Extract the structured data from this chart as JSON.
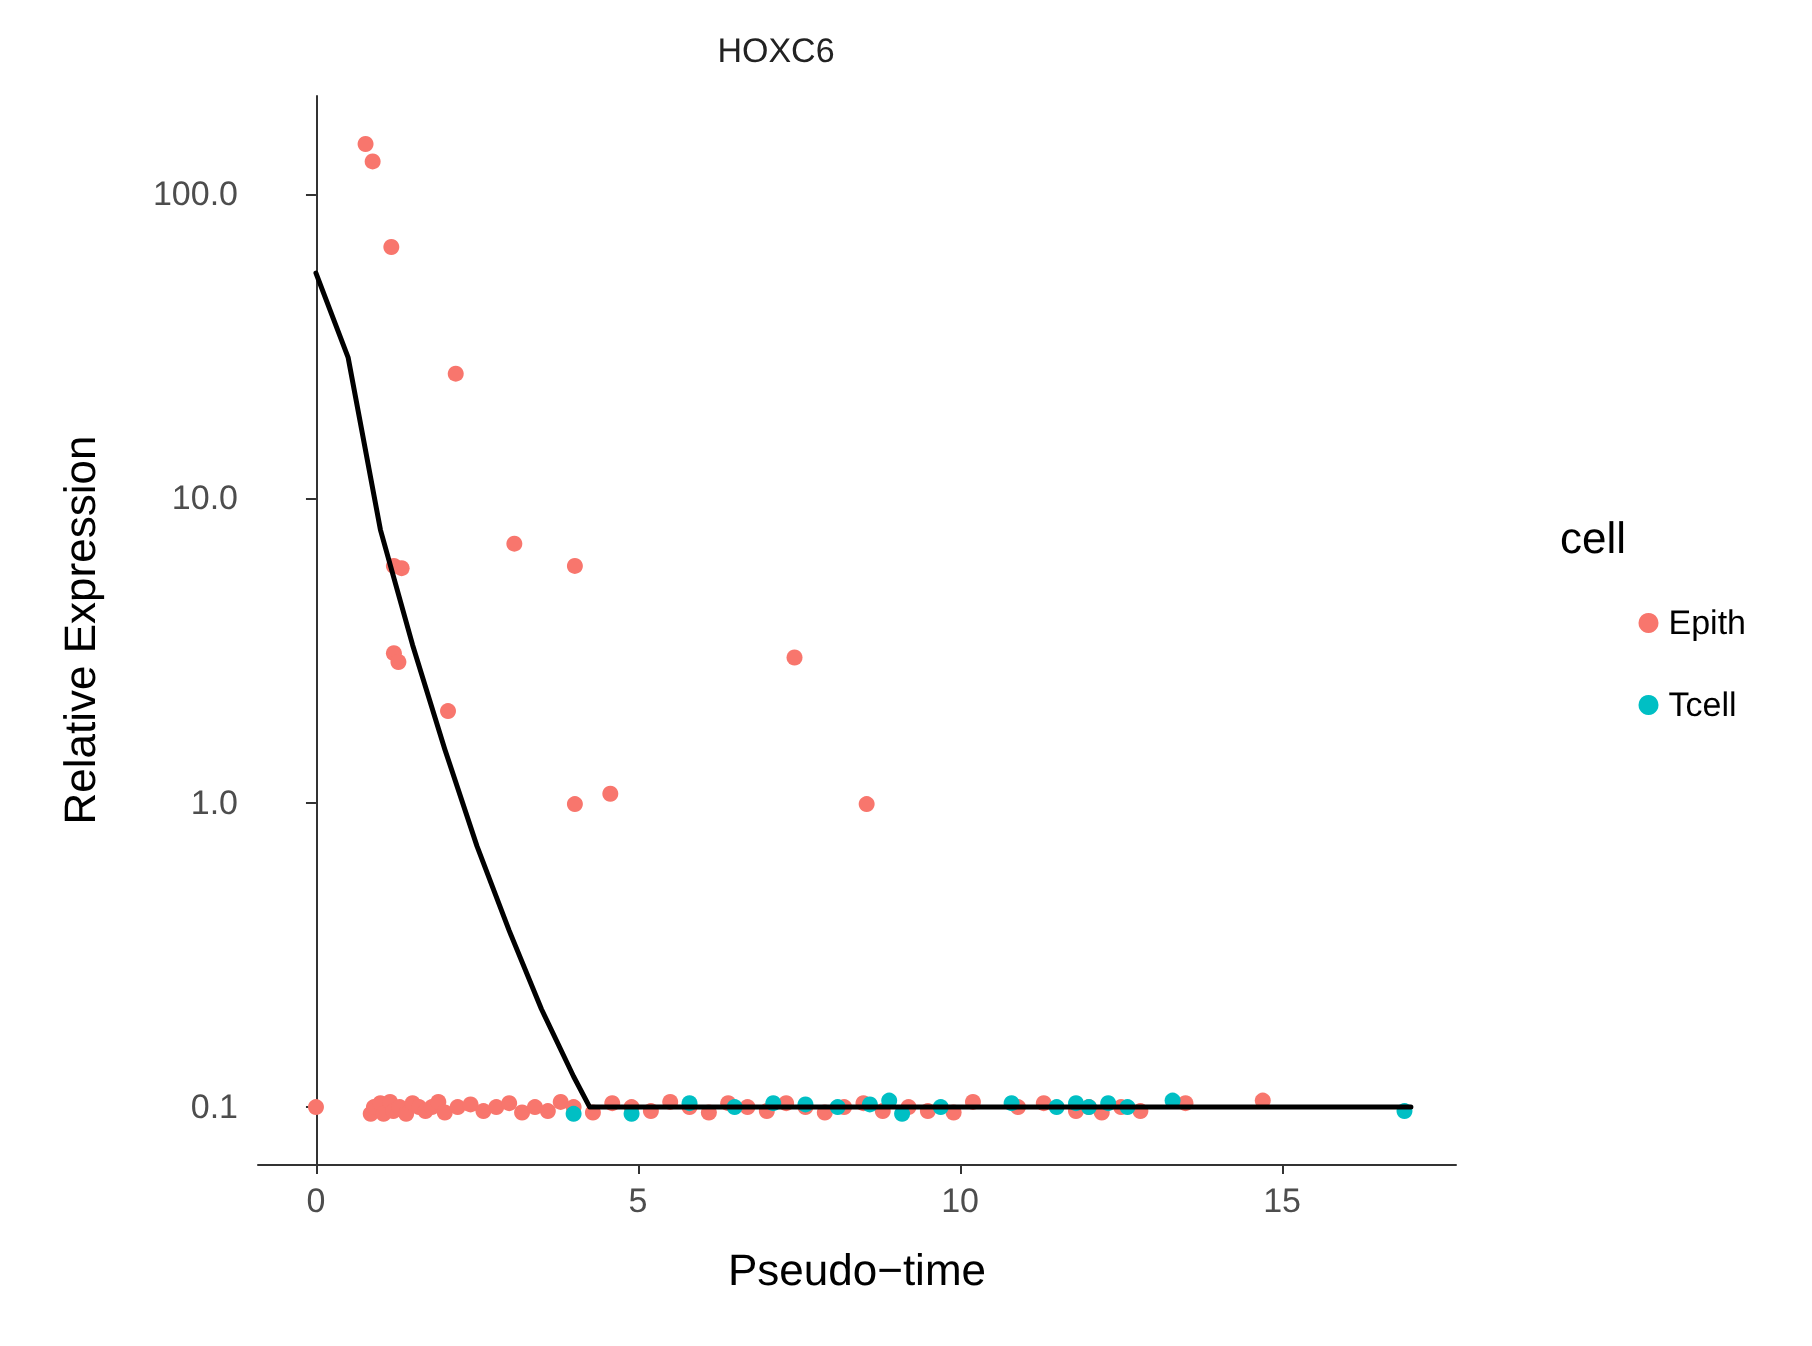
{
  "chart_data": {
    "type": "scatter",
    "title": "HOXC6",
    "xlabel": "Pseudo−time",
    "ylabel": "Relative Expression",
    "legend_title": "cell",
    "xlim": [
      -0.9,
      17.7
    ],
    "xticks": [
      0,
      5,
      10,
      15
    ],
    "ylim": [
      0.065,
      210
    ],
    "yticks": [
      {
        "value": 0.1,
        "label": "0.1"
      },
      {
        "value": 1,
        "label": "1.0"
      },
      {
        "value": 10,
        "label": "10.0"
      },
      {
        "value": 100,
        "label": "100.0"
      }
    ],
    "log": "y",
    "grid": false,
    "legend": "right",
    "marker": "circle",
    "series": [
      {
        "name": "Epith",
        "color": "#f8766d",
        "x": [
          0.77,
          0.88,
          1.17,
          2.17,
          3.08,
          4.02,
          1.21,
          1.33,
          1.21,
          1.28,
          2.05,
          7.43,
          4.02,
          4.57,
          8.55,
          0,
          0.85,
          0.9,
          1.0,
          1.05,
          1.15,
          1.2,
          1.3,
          1.4,
          1.5,
          1.6,
          1.7,
          1.8,
          1.9,
          2.0,
          2.2,
          2.4,
          2.6,
          2.8,
          3.0,
          3.2,
          3.4,
          3.6,
          3.8,
          4.0,
          4.3,
          4.6,
          4.9,
          5.2,
          5.5,
          5.8,
          6.1,
          6.4,
          6.7,
          7.0,
          7.3,
          7.6,
          7.9,
          8.2,
          8.5,
          8.8,
          9.2,
          9.5,
          9.9,
          10.2,
          10.9,
          11.3,
          11.8,
          12.0,
          12.2,
          12.5,
          12.8,
          13.5,
          14.7
        ],
        "values": [
          146,
          128,
          67,
          25.7,
          7.1,
          6.0,
          6.0,
          5.9,
          3.1,
          2.9,
          2.0,
          3.0,
          0.99,
          1.07,
          0.99,
          0.1,
          0.095,
          0.1,
          0.103,
          0.095,
          0.104,
          0.097,
          0.1,
          0.095,
          0.103,
          0.1,
          0.097,
          0.1,
          0.104,
          0.096,
          0.1,
          0.102,
          0.097,
          0.1,
          0.103,
          0.096,
          0.1,
          0.097,
          0.104,
          0.1,
          0.096,
          0.103,
          0.1,
          0.097,
          0.104,
          0.1,
          0.096,
          0.103,
          0.1,
          0.097,
          0.103,
          0.1,
          0.096,
          0.1,
          0.103,
          0.097,
          0.1,
          0.097,
          0.096,
          0.104,
          0.1,
          0.103,
          0.097,
          0.1,
          0.096,
          0.1,
          0.097,
          0.103,
          0.105
        ]
      },
      {
        "name": "Tcell",
        "color": "#00bfc4",
        "x": [
          4.0,
          4.9,
          5.8,
          6.5,
          7.1,
          7.6,
          8.1,
          8.6,
          8.9,
          9.1,
          9.7,
          10.8,
          11.5,
          11.8,
          12.0,
          12.3,
          12.6,
          13.3,
          16.9
        ],
        "values": [
          0.095,
          0.095,
          0.103,
          0.1,
          0.103,
          0.102,
          0.1,
          0.102,
          0.105,
          0.095,
          0.1,
          0.103,
          0.1,
          0.103,
          0.1,
          0.103,
          0.1,
          0.105,
          0.097
        ]
      },
      {
        "type": "line",
        "color": "#000000",
        "marker": "none",
        "x": [
          0,
          0.5,
          1,
          1.5,
          2,
          2.5,
          3,
          3.5,
          4,
          4.25,
          17
        ],
        "values": [
          55,
          29,
          7.9,
          3.3,
          1.5,
          0.72,
          0.38,
          0.21,
          0.126,
          0.1,
          0.1
        ]
      }
    ]
  }
}
